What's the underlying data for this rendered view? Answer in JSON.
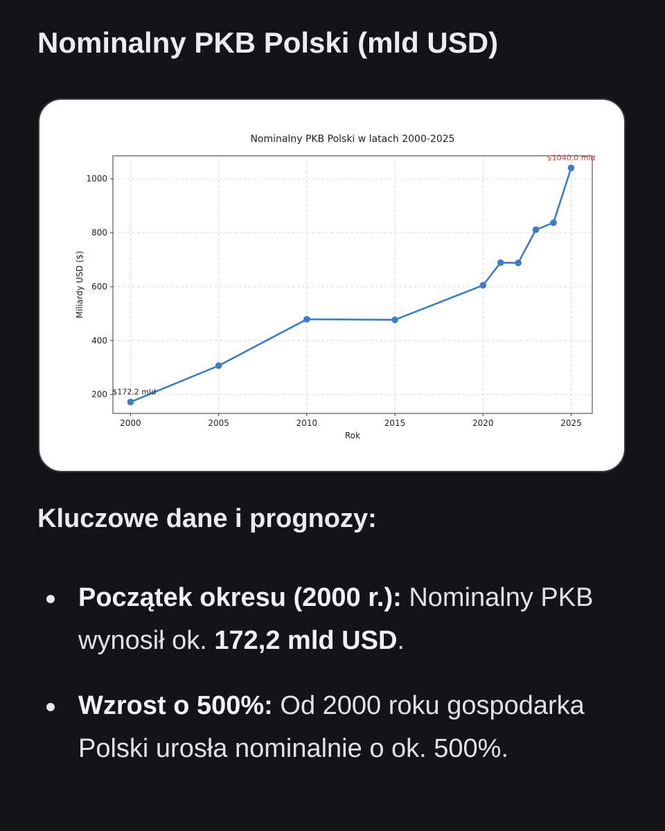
{
  "page": {
    "title": "Nominalny PKB Polski (mld USD)",
    "section_heading": "Kluczowe dane i prognozy:"
  },
  "bullets": [
    {
      "lead": "Początek okresu (2000 r.):",
      "text_before": " Nominalny PKB wynosił ok. ",
      "strong": "172,2 mld USD",
      "text_after": "."
    },
    {
      "lead": "Wzrost o 500%:",
      "text_before": " Od 2000 roku gospodarka Polski urosła nominalnie o ok. 500%.",
      "strong": "",
      "text_after": ""
    }
  ],
  "chart_data": {
    "type": "line",
    "title": "Nominalny PKB Polski w latach 2000-2025",
    "xlabel": "Rok",
    "ylabel": "Miliardy USD ($)",
    "xlim": [
      1999,
      2026.2
    ],
    "ylim": [
      130,
      1085
    ],
    "xticks": [
      2000,
      2005,
      2010,
      2015,
      2020,
      2025
    ],
    "yticks": [
      200,
      400,
      600,
      800,
      1000
    ],
    "grid": true,
    "series": [
      {
        "color": "#3a7dc4",
        "x": [
          2000,
          2005,
          2010,
          2015,
          2020,
          2021,
          2022,
          2023,
          2024,
          2025
        ],
        "y": [
          172.2,
          307,
          479,
          477,
          605,
          689,
          688,
          811,
          837,
          1040.0
        ]
      }
    ],
    "annotations": [
      {
        "x": 2000,
        "y": 172.2,
        "text": "$172.2 mld",
        "color": "#222222"
      },
      {
        "x": 2025,
        "y": 1040.0,
        "text": "$1040.0 mld",
        "color": "#d03a3a"
      }
    ]
  }
}
